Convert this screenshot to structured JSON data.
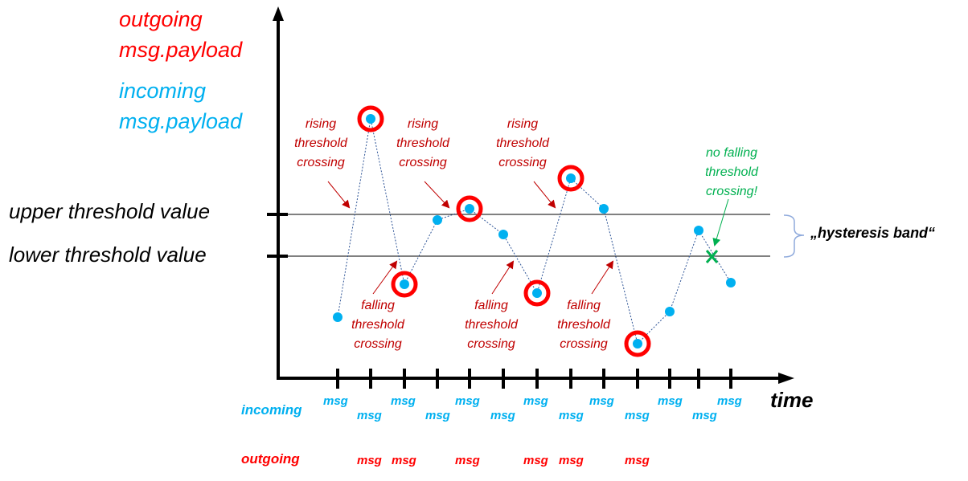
{
  "legend": {
    "outgoing": [
      "outgoing",
      "msg.payload"
    ],
    "incoming": [
      "incoming",
      "msg.payload"
    ]
  },
  "thresholds": {
    "upper_label": "upper threshold value",
    "lower_label": "lower threshold value"
  },
  "band_label": "„hysteresis band“",
  "axis_label": "time",
  "annotations": {
    "rising": [
      "rising",
      "threshold",
      "crossing"
    ],
    "falling": [
      "falling",
      "threshold",
      "crossing"
    ],
    "no_falling": [
      "no falling",
      "threshold",
      "crossing!"
    ]
  },
  "rows": {
    "incoming_label": "incoming",
    "outgoing_label": "outgoing",
    "msg": "msg"
  },
  "colors": {
    "outgoing": "#ff0000",
    "incoming": "#00b0f0",
    "annotation": "#c00000",
    "no_crossing": "#00b050",
    "band_brace": "#8faadc"
  }
}
